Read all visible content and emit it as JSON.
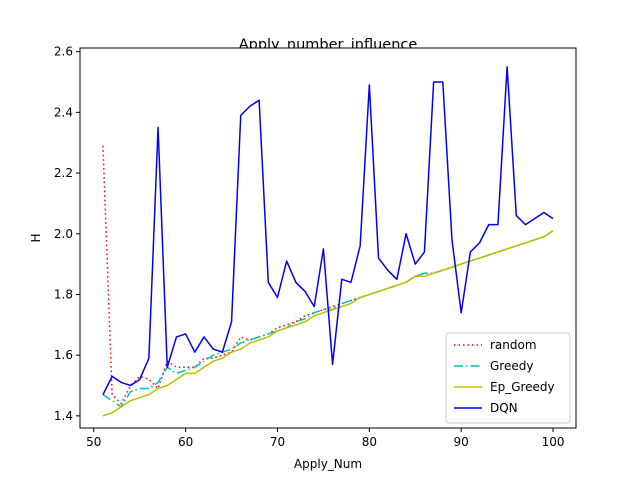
{
  "chart_data": {
    "type": "line",
    "title": "Apply_number_influence",
    "xlabel": "Apply_Num",
    "ylabel": "H",
    "xlim": [
      48.5,
      102.5
    ],
    "ylim": [
      1.36,
      2.612
    ],
    "xticks": [
      50,
      60,
      70,
      80,
      90,
      100
    ],
    "xtick_labels": [
      "50",
      "60",
      "70",
      "80",
      "90",
      "100"
    ],
    "yticks": [
      1.4,
      1.6,
      1.8,
      2.0,
      2.2,
      2.4,
      2.6
    ],
    "ytick_labels": [
      "1.4",
      "1.6",
      "1.8",
      "2.0",
      "2.2",
      "2.4",
      "2.6"
    ],
    "grid": false,
    "legend_position": "lower-right",
    "x": [
      51,
      52,
      53,
      54,
      55,
      56,
      57,
      58,
      59,
      60,
      61,
      62,
      63,
      64,
      65,
      66,
      67,
      68,
      69,
      70,
      71,
      72,
      73,
      74,
      75,
      76,
      77,
      78,
      79,
      80,
      81,
      82,
      83,
      84,
      85,
      86,
      87,
      88,
      89,
      90,
      91,
      92,
      93,
      94,
      95,
      96,
      97,
      98,
      99,
      100
    ],
    "series": [
      {
        "name": "random",
        "color": "#ff0000",
        "style": "dotted",
        "values": [
          2.29,
          1.47,
          1.44,
          1.5,
          1.53,
          1.52,
          1.49,
          1.58,
          1.56,
          1.56,
          1.56,
          1.59,
          1.59,
          1.6,
          1.61,
          1.66,
          1.65,
          1.66,
          1.67,
          1.69,
          1.7,
          1.71,
          1.73,
          1.74,
          1.75,
          1.76,
          1.77,
          1.78,
          1.79,
          1.8,
          1.81,
          1.82,
          1.83,
          1.84,
          1.86,
          1.87,
          1.87,
          1.88,
          1.89,
          1.9,
          1.91,
          1.92,
          1.93,
          1.94,
          1.95,
          1.96,
          1.97,
          1.98,
          1.99,
          2.01
        ]
      },
      {
        "name": "Greedy",
        "color": "#00bfbf",
        "style": "dashdot",
        "values": [
          1.47,
          1.45,
          1.43,
          1.48,
          1.49,
          1.49,
          1.51,
          1.56,
          1.54,
          1.55,
          1.56,
          1.58,
          1.6,
          1.61,
          1.62,
          1.64,
          1.65,
          1.66,
          1.67,
          1.68,
          1.69,
          1.71,
          1.72,
          1.74,
          1.75,
          1.75,
          1.77,
          1.78,
          1.79,
          1.8,
          1.81,
          1.82,
          1.83,
          1.84,
          1.86,
          1.87,
          1.87,
          1.88,
          1.89,
          1.9,
          1.91,
          1.92,
          1.93,
          1.94,
          1.95,
          1.96,
          1.97,
          1.98,
          1.99,
          2.01
        ]
      },
      {
        "name": "Ep_Greedy",
        "color": "#bfbf00",
        "style": "solid",
        "values": [
          1.4,
          1.41,
          1.43,
          1.45,
          1.46,
          1.47,
          1.49,
          1.5,
          1.52,
          1.54,
          1.54,
          1.56,
          1.58,
          1.59,
          1.61,
          1.62,
          1.64,
          1.65,
          1.66,
          1.68,
          1.69,
          1.7,
          1.71,
          1.73,
          1.74,
          1.75,
          1.76,
          1.77,
          1.79,
          1.8,
          1.81,
          1.82,
          1.83,
          1.84,
          1.86,
          1.86,
          1.87,
          1.88,
          1.89,
          1.9,
          1.91,
          1.92,
          1.93,
          1.94,
          1.95,
          1.96,
          1.97,
          1.98,
          1.99,
          2.01
        ]
      },
      {
        "name": "DQN",
        "color": "#0000ff",
        "style": "solid",
        "values": [
          1.47,
          1.53,
          1.51,
          1.5,
          1.52,
          1.59,
          2.35,
          1.56,
          1.66,
          1.67,
          1.61,
          1.66,
          1.62,
          1.61,
          1.71,
          2.39,
          2.42,
          2.44,
          1.84,
          1.79,
          1.91,
          1.84,
          1.81,
          1.76,
          1.95,
          1.57,
          1.85,
          1.84,
          1.96,
          2.49,
          1.92,
          1.88,
          1.85,
          2.0,
          1.9,
          1.94,
          2.5,
          2.5,
          1.98,
          1.74,
          1.94,
          1.97,
          2.03,
          2.03,
          2.55,
          2.06,
          2.03,
          2.05,
          2.07,
          2.05
        ]
      }
    ]
  }
}
